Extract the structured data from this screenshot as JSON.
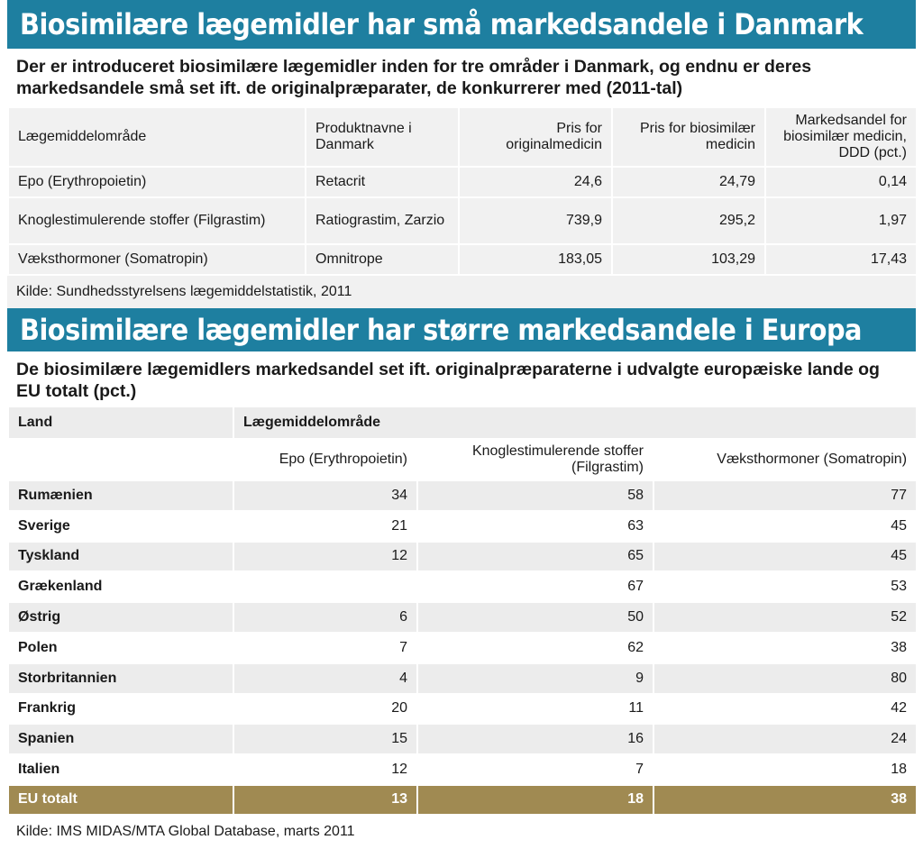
{
  "section1": {
    "banner": "Biosimilære lægemidler har små markedsandele i Danmark",
    "subtitle": "Der er introduceret biosimilære lægemidler inden for tre områder i Danmark, og endnu er deres markedsandele små set ift. de originalpræparater, de konkurrerer med (2011-tal)",
    "headers": [
      "Lægemiddelområde",
      "Produktnavne i Danmark",
      "Pris for originalmedicin",
      "Pris for biosimilær medicin",
      "Markedsandel for biosimilær medicin, DDD (pct.)"
    ],
    "rows": [
      {
        "area": "Epo (Erythropoietin)",
        "product": "Retacrit",
        "orig_price": "24,6",
        "bio_price": "24,79",
        "share": "0,14"
      },
      {
        "area": "Knoglestimulerende stoffer (Filgrastim)",
        "product": "Ratiograstim, Zarzio",
        "orig_price": "739,9",
        "bio_price": "295,2",
        "share": "1,97"
      },
      {
        "area": "Væksthormoner (Somatropin)",
        "product": "Omnitrope",
        "orig_price": "183,05",
        "bio_price": "103,29",
        "share": "17,43"
      }
    ],
    "source": "Kilde: Sundhedsstyrelsens lægemiddelstatistik, 2011"
  },
  "section2": {
    "banner": "Biosimilære lægemidler har større markedsandele i Europa",
    "subtitle": "De biosimilære lægemidlers markedsandel set ift. originalpræparaterne i udvalgte europæiske lande og EU totalt (pct.)",
    "col_land": "Land",
    "col_group": "Lægemiddelområde",
    "subheaders": [
      "Epo (Erythropoietin)",
      "Knoglestimulerende stoffer (Filgrastim)",
      "Væksthormoner (Somatropin)"
    ],
    "rows": [
      {
        "country": "Rumænien",
        "epo": "34",
        "filgrastim": "58",
        "somatropin": "77"
      },
      {
        "country": "Sverige",
        "epo": "21",
        "filgrastim": "63",
        "somatropin": "45"
      },
      {
        "country": "Tyskland",
        "epo": "12",
        "filgrastim": "65",
        "somatropin": "45"
      },
      {
        "country": "Grækenland",
        "epo": "",
        "filgrastim": "67",
        "somatropin": "53"
      },
      {
        "country": "Østrig",
        "epo": "6",
        "filgrastim": "50",
        "somatropin": "52"
      },
      {
        "country": "Polen",
        "epo": "7",
        "filgrastim": "62",
        "somatropin": "38"
      },
      {
        "country": "Storbritannien",
        "epo": "4",
        "filgrastim": "9",
        "somatropin": "80"
      },
      {
        "country": "Frankrig",
        "epo": "20",
        "filgrastim": "11",
        "somatropin": "42"
      },
      {
        "country": "Spanien",
        "epo": "15",
        "filgrastim": "16",
        "somatropin": "24"
      },
      {
        "country": "Italien",
        "epo": "12",
        "filgrastim": "7",
        "somatropin": "18"
      }
    ],
    "total": {
      "country": "EU totalt",
      "epo": "13",
      "filgrastim": "18",
      "somatropin": "38"
    },
    "source": "Kilde: IMS MIDAS/MTA Global Database, marts 2011"
  },
  "colors": {
    "banner": "#1e7fa0",
    "total_row": "#a08a52",
    "row_alt": "#ececec"
  }
}
